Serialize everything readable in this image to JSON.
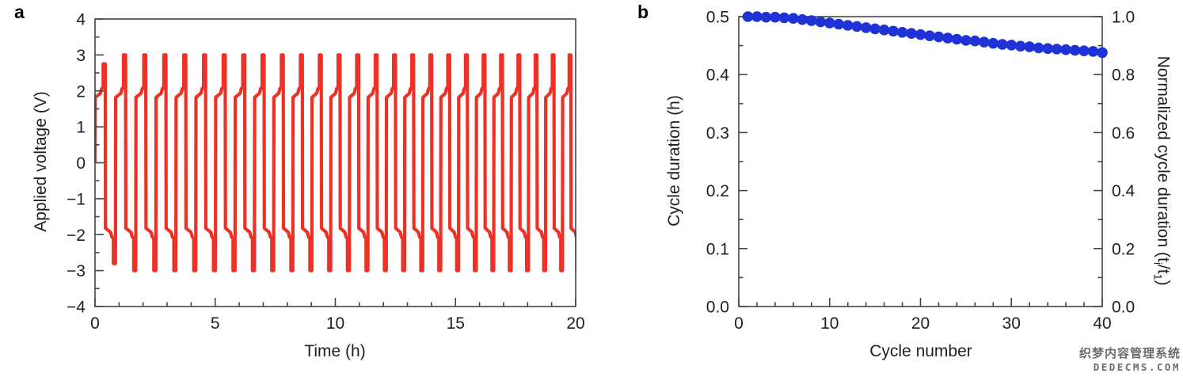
{
  "panel_a": {
    "letter": "a",
    "x_title": "Time (h)",
    "y_title": "Applied voltage (V)"
  },
  "panel_b": {
    "letter": "b",
    "x_title": "Cycle number",
    "y_left_title": "Cycle duration (h)",
    "y_right_title_parts": {
      "prefix": "Normalized cycle duration (t",
      "sub_i": "i",
      "mid": "/t",
      "sub_1": "1",
      "suffix": ")"
    }
  },
  "watermark": {
    "line1": "织梦内容管理系统",
    "line2": "DEDECMS.COM"
  },
  "colors": {
    "voltage_line": "#ee3124",
    "duration_dots": "#1e32d6",
    "axis": "#454545",
    "text": "#1f1f1f"
  },
  "chart_data": [
    {
      "type": "line",
      "panel": "a",
      "xlabel": "Time (h)",
      "ylabel": "Applied voltage (V)",
      "xlim": [
        0,
        20
      ],
      "ylim": [
        -4,
        4
      ],
      "grid": false,
      "legend": "none",
      "x_ticks": {
        "labels": [
          "0",
          "5",
          "10",
          "15",
          "20"
        ],
        "values": [
          0,
          5,
          10,
          15,
          20
        ],
        "minor_step": 1
      },
      "y_ticks": {
        "labels": [
          "4",
          "3",
          "2",
          "1",
          "0",
          "−1",
          "−2",
          "−3",
          "−4"
        ],
        "values": [
          4,
          3,
          2,
          1,
          0,
          -1,
          -2,
          -3,
          -4
        ],
        "minor_step": 0.5
      },
      "waveform": {
        "description": "Symmetric square-wave cycling: ~±1.85 V plateau ramping to ±2.1 V then terminal spike to ±3 V each half-cycle; first cycle spikes only to +2.75 / −2.8 V; cycle period shrinks from ~0.85 h to ~0.70 h across the 20 h window",
        "start_voltage": 0,
        "plateau_start_v": 1.82,
        "plateau_end_v": 1.93,
        "step_v": 2.07,
        "pre_spike_v": 2.1,
        "spike_v": 3.0,
        "first_cycle_pos_spike_v": 2.75,
        "first_cycle_neg_spike_v": -2.8,
        "cycles": 26,
        "first_cycle_duration_h": 0.85,
        "last_cycle_duration_h": 0.7,
        "plateau_frac": 0.52,
        "step_frac": 0.66,
        "spike_start_frac": 0.8
      }
    },
    {
      "type": "scatter",
      "panel": "b",
      "xlabel": "Cycle number",
      "ylabel_left": "Cycle duration (h)",
      "ylabel_right": "Normalized cycle duration (ti/t1)",
      "xlim": [
        0,
        40
      ],
      "ylim_left": [
        0,
        0.5
      ],
      "ylim_right": [
        0,
        1.0
      ],
      "grid": false,
      "legend": "none",
      "x_ticks": {
        "labels": [
          "0",
          "10",
          "20",
          "30",
          "40"
        ],
        "values": [
          0,
          10,
          20,
          30,
          40
        ],
        "minor_step": 2
      },
      "y_left_ticks": {
        "labels": [
          "0.5",
          "0.4",
          "0.3",
          "0.2",
          "0.1",
          "0.0"
        ],
        "values": [
          0.5,
          0.4,
          0.3,
          0.2,
          0.1,
          0
        ],
        "minor_step": 0.05
      },
      "y_right_ticks": {
        "labels": [
          "1.0",
          "0.8",
          "0.6",
          "0.4",
          "0.2",
          "0.0"
        ],
        "values": [
          1.0,
          0.8,
          0.6,
          0.4,
          0.2,
          0
        ],
        "minor_step": 0.1
      },
      "x": [
        1,
        2,
        3,
        4,
        5,
        6,
        7,
        8,
        9,
        10,
        11,
        12,
        13,
        14,
        15,
        16,
        17,
        18,
        19,
        20,
        21,
        22,
        23,
        24,
        25,
        26,
        27,
        28,
        29,
        30,
        31,
        32,
        33,
        34,
        35,
        36,
        37,
        38,
        39,
        40
      ],
      "cycle_duration_h": [
        0.5,
        0.5,
        0.499,
        0.499,
        0.498,
        0.497,
        0.495,
        0.493,
        0.491,
        0.489,
        0.487,
        0.485,
        0.483,
        0.481,
        0.479,
        0.477,
        0.475,
        0.473,
        0.471,
        0.469,
        0.467,
        0.465,
        0.463,
        0.461,
        0.459,
        0.458,
        0.456,
        0.454,
        0.452,
        0.451,
        0.449,
        0.448,
        0.446,
        0.445,
        0.444,
        0.443,
        0.442,
        0.441,
        0.44,
        0.438
      ],
      "normalized_duration": [
        1.0,
        1.0,
        0.998,
        0.998,
        0.996,
        0.994,
        0.99,
        0.986,
        0.982,
        0.978,
        0.974,
        0.97,
        0.966,
        0.962,
        0.958,
        0.954,
        0.95,
        0.946,
        0.942,
        0.938,
        0.934,
        0.93,
        0.926,
        0.922,
        0.918,
        0.916,
        0.912,
        0.908,
        0.904,
        0.902,
        0.898,
        0.896,
        0.892,
        0.89,
        0.888,
        0.886,
        0.884,
        0.882,
        0.88,
        0.876
      ]
    }
  ]
}
